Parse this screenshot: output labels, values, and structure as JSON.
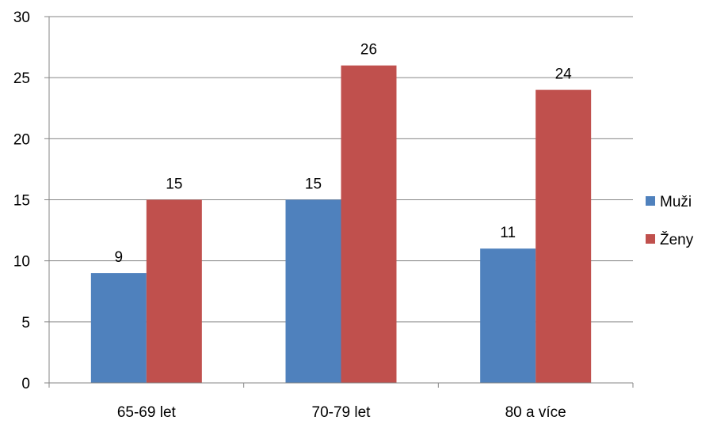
{
  "chart_data": {
    "type": "bar",
    "title": "",
    "xlabel": "",
    "ylabel": "",
    "categories": [
      "65-69 let",
      "70-79 let",
      "80 a více"
    ],
    "series": [
      {
        "name": "Muži",
        "values": [
          9,
          15,
          11
        ],
        "color": "#4F81BD"
      },
      {
        "name": "Ženy",
        "values": [
          15,
          26,
          24
        ],
        "color": "#C0504D"
      }
    ],
    "ylim": [
      0,
      30
    ],
    "yticks": [
      "0",
      "5",
      "10",
      "15",
      "20",
      "25",
      "30"
    ],
    "grid": true,
    "legend_position": "right",
    "data_labels": true
  }
}
